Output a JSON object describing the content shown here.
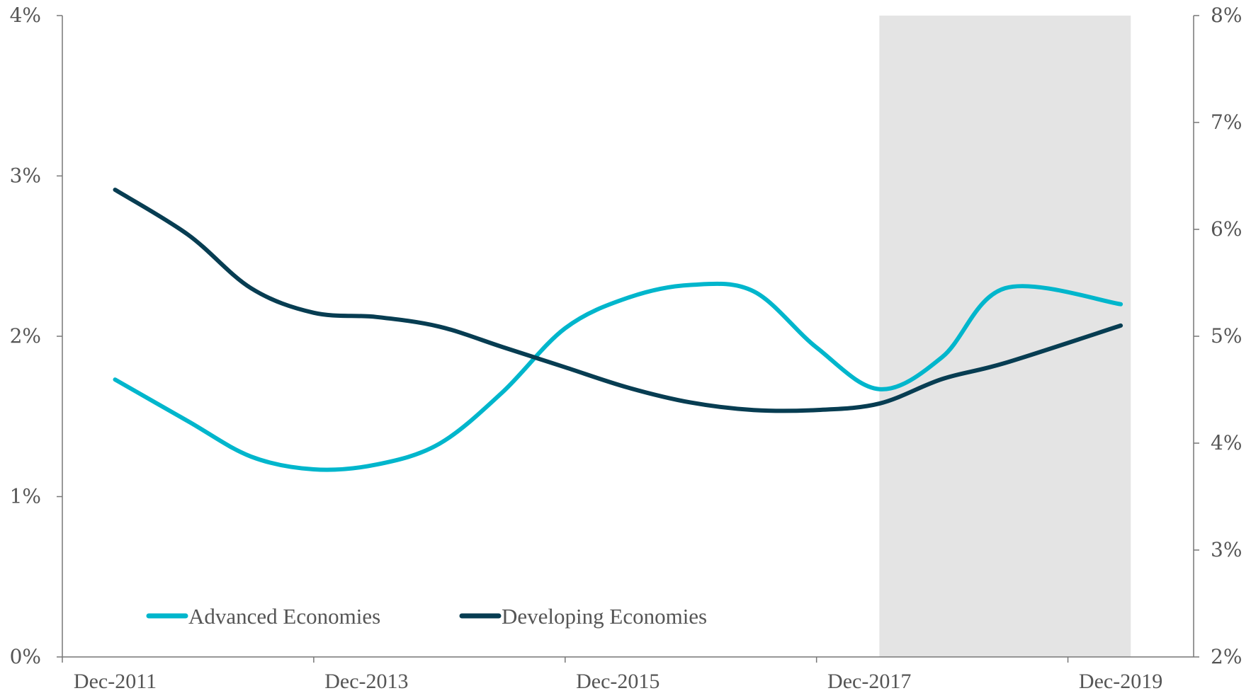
{
  "chart_data": {
    "type": "line",
    "x_ticks": [
      "Dec-2011",
      "Dec-2013",
      "Dec-2015",
      "Dec-2017",
      "Dec-2019"
    ],
    "left_axis": {
      "ylim": [
        0,
        4
      ],
      "ticks": [
        "0%",
        "1%",
        "2%",
        "3%",
        "4%"
      ]
    },
    "right_axis": {
      "ylim": [
        2,
        8
      ],
      "ticks": [
        "2%",
        "3%",
        "4%",
        "5%",
        "6%",
        "7%",
        "8%"
      ]
    },
    "shaded_region": {
      "from": 2018.0,
      "to": 2020.0,
      "color": "#e4e4e4"
    },
    "grid": false,
    "legend_position": "bottom-left",
    "series": [
      {
        "name": "Advanced Economies",
        "axis": "left",
        "color": "#00b6cc",
        "x": [
          2011.92,
          2012.5,
          2013.0,
          2013.5,
          2014.0,
          2014.5,
          2015.0,
          2015.5,
          2016.0,
          2016.5,
          2017.0,
          2017.5,
          2018.0,
          2018.5,
          2019.0,
          2019.92
        ],
        "values": [
          1.73,
          1.47,
          1.25,
          1.17,
          1.2,
          1.33,
          1.65,
          2.05,
          2.24,
          2.32,
          2.28,
          1.93,
          1.67,
          1.87,
          2.3,
          2.2
        ]
      },
      {
        "name": "Developing Economies",
        "axis": "right",
        "color": "#073d52",
        "x": [
          2011.92,
          2012.5,
          2013.0,
          2013.5,
          2014.0,
          2014.5,
          2015.0,
          2015.5,
          2016.0,
          2016.5,
          2017.0,
          2017.5,
          2018.0,
          2018.5,
          2019.0,
          2019.92
        ],
        "values": [
          6.37,
          5.95,
          5.45,
          5.22,
          5.18,
          5.09,
          4.9,
          4.71,
          4.52,
          4.38,
          4.31,
          4.31,
          4.37,
          4.6,
          4.75,
          5.1
        ]
      }
    ]
  }
}
